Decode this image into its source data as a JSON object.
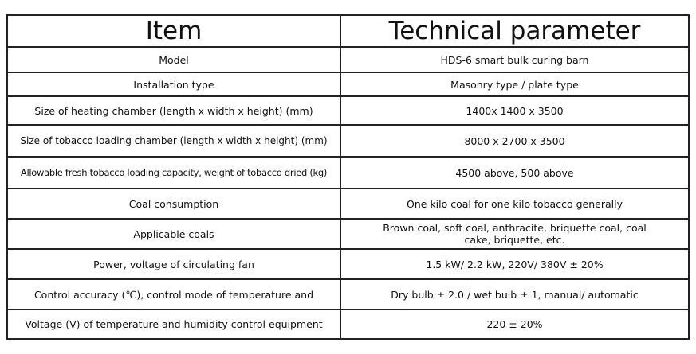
{
  "header": {
    "item": "Item",
    "parameter": "Technical parameter"
  },
  "rows": [
    {
      "item": "Model",
      "value": "HDS-6 smart bulk curing barn"
    },
    {
      "item": "Installation type",
      "value": "Masonry type / plate type"
    },
    {
      "item": "Size of heating chamber (length x width x height) (mm)",
      "value": "1400x 1400 x 3500"
    },
    {
      "item": "Size of tobacco loading chamber (length x width x height) (mm)",
      "value": "8000 x 2700 x 3500"
    },
    {
      "item": "Allowable fresh tobacco loading capacity, weight of tobacco dried (kg)",
      "value": "4500 above, 500 above"
    },
    {
      "item": "Coal consumption",
      "value": "One kilo coal for one kilo tobacco generally"
    },
    {
      "item": "Applicable coals",
      "value": "Brown coal, soft coal, anthracite, briquette coal, coal cake, briquette, etc."
    },
    {
      "item": "Power, voltage of circulating fan",
      "value": "1.5 kW/ 2.2 kW, 220V/ 380V ± 20%"
    },
    {
      "item": "Control accuracy (℃), control mode of temperature and",
      "value": "Dry bulb ± 2.0 / wet bulb ± 1, manual/ automatic"
    },
    {
      "item": "Voltage (V) of temperature and humidity control equipment",
      "value": "220 ± 20%"
    }
  ]
}
